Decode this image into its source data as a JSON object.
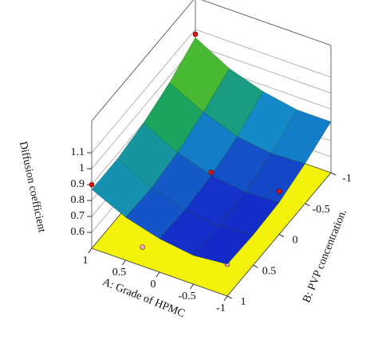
{
  "chart_data": {
    "type": "surface3d",
    "xlabel": "A: Grade of HPMC",
    "ylabel": "B: PVP concentration.",
    "zlabel": "Diffusion coefficient",
    "x": [
      1,
      0.5,
      0,
      -0.5,
      -1
    ],
    "y": [
      -1,
      -0.5,
      0,
      0.5,
      1
    ],
    "z": [
      [
        1.05,
        0.96,
        0.9,
        0.87,
        0.87
      ],
      [
        0.93,
        0.85,
        0.79,
        0.76,
        0.77
      ],
      [
        0.86,
        0.77,
        0.72,
        0.7,
        0.71
      ],
      [
        0.82,
        0.74,
        0.69,
        0.67,
        0.68
      ],
      [
        0.82,
        0.75,
        0.7,
        0.69,
        0.7
      ]
    ],
    "xlim": [
      1,
      -1
    ],
    "ylim": [
      -1,
      1
    ],
    "zlim": [
      0.5,
      1.3
    ],
    "xticks": [
      1,
      0.5,
      0,
      -0.5,
      -1
    ],
    "yticks": [
      -1,
      -0.5,
      0,
      0.5,
      1
    ],
    "zticks": [
      0.6,
      0.7,
      0.8,
      0.9,
      1,
      1.1
    ],
    "floor_color": "#f2f20a",
    "points_above": {
      "color": "#dd1111",
      "x": [
        1,
        1,
        0,
        -1
      ],
      "y": [
        -1,
        1,
        0,
        0
      ],
      "z": [
        1.07,
        0.9,
        0.74,
        0.77
      ]
    },
    "points_below": {
      "color": "#f4a6b4",
      "x": [
        0.25,
        -1
      ],
      "y": [
        1,
        1
      ],
      "z": [
        0.62,
        0.7
      ]
    }
  }
}
